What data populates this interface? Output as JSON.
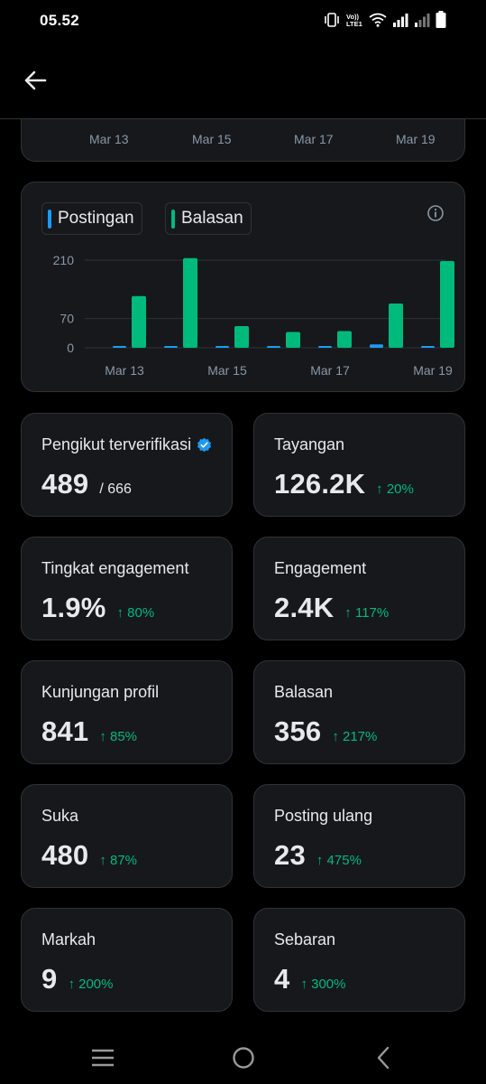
{
  "status_bar": {
    "time": "05.52",
    "icons": [
      "vibrate-icon",
      "volte-icon",
      "wifi-icon",
      "signal-icon",
      "signal-weak-icon",
      "battery-icon"
    ],
    "volte_top": "Vo))",
    "volte_bottom": "LTE1"
  },
  "header": {
    "back_icon": "arrow-left-icon"
  },
  "top_chart": {
    "x_ticks": [
      "Mar 13",
      "Mar 15",
      "Mar 17",
      "Mar 19"
    ]
  },
  "chart_data": {
    "type": "bar",
    "categories": [
      "Mar 13",
      "Mar 14",
      "Mar 15",
      "Mar 16",
      "Mar 17",
      "Mar 18",
      "Mar 19"
    ],
    "x_tick_labels": [
      "Mar 13",
      "Mar 15",
      "Mar 17",
      "Mar 19"
    ],
    "series": [
      {
        "name": "Postingan",
        "color": "#1d9bf0",
        "values": [
          2,
          1,
          1,
          1,
          2,
          8,
          2
        ]
      },
      {
        "name": "Balasan",
        "color": "#00ba7c",
        "values": [
          124,
          215,
          52,
          38,
          40,
          106,
          208
        ]
      }
    ],
    "y_ticks": [
      0,
      70,
      210
    ],
    "ylim": [
      0,
      210
    ],
    "grid": true,
    "legend_position": "top-left"
  },
  "stats": [
    {
      "label": "Pengikut terverifikasi",
      "value": "489",
      "total": "/ 666",
      "change": "",
      "verified": true
    },
    {
      "label": "Tayangan",
      "value": "126.2K",
      "total": "",
      "change": "↑ 20%"
    },
    {
      "label": "Tingkat engagement",
      "value": "1.9%",
      "total": "",
      "change": "↑ 80%"
    },
    {
      "label": "Engagement",
      "value": "2.4K",
      "total": "",
      "change": "↑ 117%"
    },
    {
      "label": "Kunjungan profil",
      "value": "841",
      "total": "",
      "change": "↑ 85%"
    },
    {
      "label": "Balasan",
      "value": "356",
      "total": "",
      "change": "↑ 217%"
    },
    {
      "label": "Suka",
      "value": "480",
      "total": "",
      "change": "↑ 87%"
    },
    {
      "label": "Posting ulang",
      "value": "23",
      "total": "",
      "change": "↑ 475%"
    },
    {
      "label": "Markah",
      "value": "9",
      "total": "",
      "change": "↑ 200%"
    },
    {
      "label": "Sebaran",
      "value": "4",
      "total": "",
      "change": "↑ 300%"
    }
  ],
  "colors": {
    "background": "#000000",
    "card": "#16181c",
    "border": "#2f3336",
    "positive": "#00ba7c",
    "accent": "#1d9bf0"
  },
  "nav_bar": {
    "icons": [
      "recent-apps-icon",
      "home-icon",
      "back-icon"
    ]
  }
}
